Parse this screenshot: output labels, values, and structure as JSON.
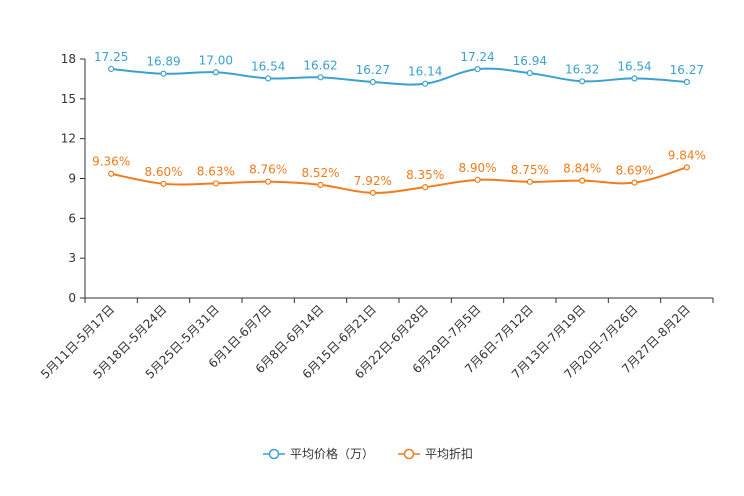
{
  "chart_data": {
    "type": "line",
    "title": "",
    "xlabel": "",
    "ylabel": "",
    "ylim": [
      0,
      18
    ],
    "yticks": [
      0,
      3,
      6,
      9,
      12,
      15,
      18
    ],
    "categories": [
      "5月11日-5月17日",
      "5月18日-5月24日",
      "5月25日-5月31日",
      "6月1日-6月7日",
      "6月8日-6月14日",
      "6月15日-6月21日",
      "6月22日-6月28日",
      "6月29日-7月5日",
      "7月6日-7月12日",
      "7月13日-7月19日",
      "7月20日-7月26日",
      "7月27日-8月2日"
    ],
    "series": [
      {
        "name": "平均价格（万）",
        "color": "#3ba1d0",
        "values": [
          17.25,
          16.89,
          17.0,
          16.54,
          16.62,
          16.27,
          16.14,
          17.24,
          16.94,
          16.32,
          16.54,
          16.27
        ],
        "labels": [
          "17.25",
          "16.89",
          "17.00",
          "16.54",
          "16.62",
          "16.27",
          "16.14",
          "17.24",
          "16.94",
          "16.32",
          "16.54",
          "16.27"
        ]
      },
      {
        "name": "平均折扣",
        "color": "#f27b1c",
        "values": [
          9.36,
          8.6,
          8.63,
          8.76,
          8.52,
          7.92,
          8.35,
          8.9,
          8.75,
          8.84,
          8.69,
          9.84
        ],
        "labels": [
          "9.36%",
          "8.60%",
          "8.63%",
          "8.76%",
          "8.52%",
          "7.92%",
          "8.35%",
          "8.90%",
          "8.75%",
          "8.84%",
          "8.69%",
          "9.84%"
        ]
      }
    ],
    "legend_position": "bottom-center"
  }
}
